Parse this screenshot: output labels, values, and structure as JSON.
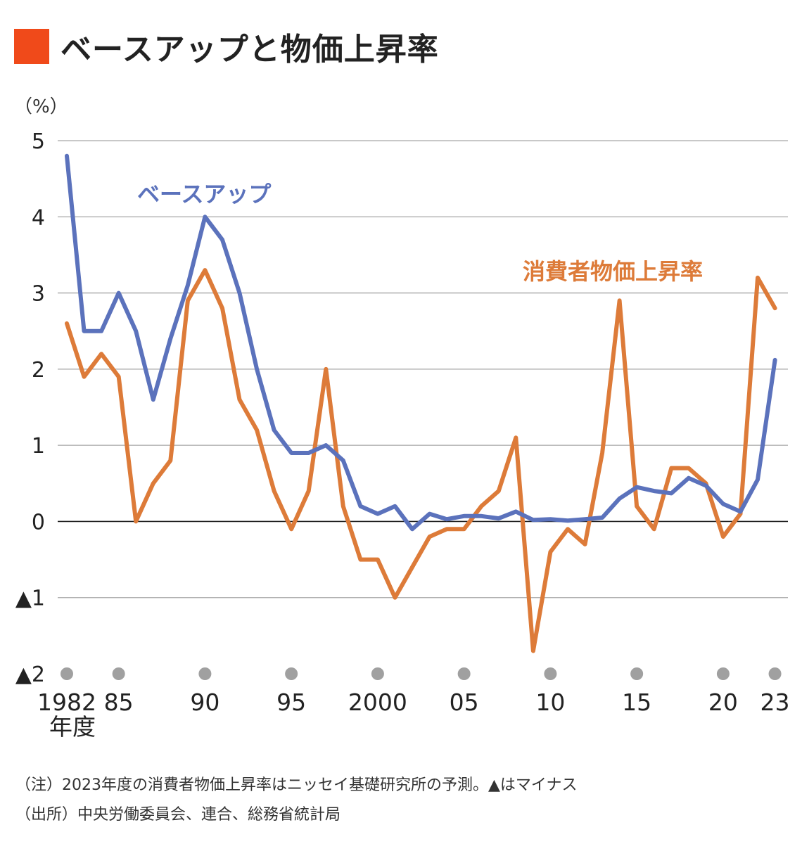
{
  "title": {
    "text": "ベースアップと物価上昇率"
  },
  "colors": {
    "title_square": "#F04A1A",
    "base_up": "#5B72BC",
    "cpi": "#DD7B39",
    "grid": "#A6A6A6",
    "zero_line": "#222222",
    "year_dot": "#A0A0A0"
  },
  "chart_data": {
    "type": "line",
    "unit_label": "（%）",
    "ylim": [
      -2,
      5
    ],
    "yticks": [
      {
        "value": 5,
        "label": "5"
      },
      {
        "value": 4,
        "label": "4"
      },
      {
        "value": 3,
        "label": "3"
      },
      {
        "value": 2,
        "label": "2"
      },
      {
        "value": 1,
        "label": "1"
      },
      {
        "value": 0,
        "label": "0"
      },
      {
        "value": -1,
        "label": "▲1"
      },
      {
        "value": -2,
        "label": "▲2"
      }
    ],
    "xticks": [
      {
        "year": 1982,
        "label": "1982"
      },
      {
        "year": 1985,
        "label": "85"
      },
      {
        "year": 1990,
        "label": "90"
      },
      {
        "year": 1995,
        "label": "95"
      },
      {
        "year": 2000,
        "label": "2000"
      },
      {
        "year": 2005,
        "label": "05"
      },
      {
        "year": 2010,
        "label": "10"
      },
      {
        "year": 2015,
        "label": "15"
      },
      {
        "year": 2020,
        "label": "20"
      },
      {
        "year": 2023,
        "label": "23"
      }
    ],
    "x_unit_label": "年度",
    "x": [
      1982,
      1983,
      1984,
      1985,
      1986,
      1987,
      1988,
      1989,
      1990,
      1991,
      1992,
      1993,
      1994,
      1995,
      1996,
      1997,
      1998,
      1999,
      2000,
      2001,
      2002,
      2003,
      2004,
      2005,
      2006,
      2007,
      2008,
      2009,
      2010,
      2011,
      2012,
      2013,
      2014,
      2015,
      2016,
      2017,
      2018,
      2019,
      2020,
      2021,
      2022,
      2023
    ],
    "series": [
      {
        "name": "ベースアップ",
        "color": "#5B72BC",
        "values": [
          4.8,
          2.5,
          2.5,
          3.0,
          2.5,
          1.6,
          2.4,
          3.1,
          4.0,
          3.7,
          3.0,
          2.0,
          1.2,
          0.9,
          0.9,
          1.0,
          0.8,
          0.2,
          0.1,
          0.2,
          -0.1,
          0.1,
          0.03,
          0.07,
          0.07,
          0.04,
          0.13,
          0.02,
          0.03,
          0.01,
          0.03,
          0.05,
          0.3,
          0.45,
          0.4,
          0.37,
          0.57,
          0.47,
          0.23,
          0.13,
          0.55,
          2.12
        ]
      },
      {
        "name": "消費者物価上昇率",
        "color": "#DD7B39",
        "values": [
          2.6,
          1.9,
          2.2,
          1.9,
          0.0,
          0.5,
          0.8,
          2.9,
          3.3,
          2.8,
          1.6,
          1.2,
          0.4,
          -0.1,
          0.4,
          2.0,
          0.2,
          -0.5,
          -0.5,
          -1.0,
          -0.6,
          -0.2,
          -0.1,
          -0.1,
          0.2,
          0.4,
          1.1,
          -1.7,
          -0.4,
          -0.1,
          -0.3,
          0.9,
          2.9,
          0.2,
          -0.1,
          0.7,
          0.7,
          0.5,
          -0.2,
          0.1,
          3.2,
          2.8
        ]
      }
    ]
  },
  "notes": {
    "note": "（注）2023年度の消費者物価上昇率はニッセイ基礎研究所の予測。▲はマイナス",
    "source": "（出所）中央労働委員会、連合、総務省統計局"
  }
}
